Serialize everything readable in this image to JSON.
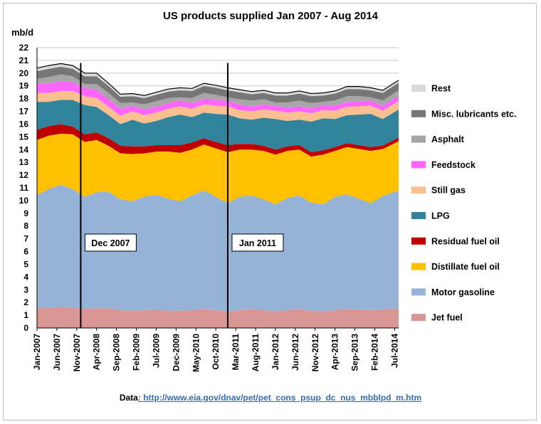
{
  "chart_data": {
    "type": "area",
    "title": "US products supplied Jan 2007 - Aug 2014",
    "ylabel": "mb/d",
    "ylim": [
      0,
      22
    ],
    "yticks": [
      0,
      1,
      2,
      3,
      4,
      5,
      6,
      7,
      8,
      9,
      10,
      11,
      12,
      13,
      14,
      15,
      16,
      17,
      18,
      19,
      20,
      21,
      22
    ],
    "grid": true,
    "stacked": true,
    "legend_position": "right",
    "x_tick_labels": [
      "Jan-2007",
      "Jun-2007",
      "Nov-2007",
      "Apr-2008",
      "Sep-2008",
      "Feb-2009",
      "Jul-2009",
      "Dec-2009",
      "May-2010",
      "Oct-2010",
      "Mar-2011",
      "Aug-2011",
      "Jan-2012",
      "Jun-2012",
      "Nov-2012",
      "Apr-2013",
      "Sep-2013",
      "Feb-2014",
      "Jul-2014"
    ],
    "x": [
      "Jan-2007",
      "Apr-2007",
      "Jul-2007",
      "Oct-2007",
      "Jan-2008",
      "Apr-2008",
      "Jul-2008",
      "Oct-2008",
      "Jan-2009",
      "Apr-2009",
      "Jul-2009",
      "Oct-2009",
      "Jan-2010",
      "Apr-2010",
      "Jul-2010",
      "Oct-2010",
      "Jan-2011",
      "Apr-2011",
      "Jul-2011",
      "Oct-2011",
      "Jan-2012",
      "Apr-2012",
      "Jul-2012",
      "Oct-2012",
      "Jan-2013",
      "Apr-2013",
      "Jul-2013",
      "Oct-2013",
      "Jan-2014",
      "Apr-2014",
      "Aug-2014"
    ],
    "series": [
      {
        "name": "Jet fuel",
        "color": "#d99694",
        "values": [
          1.55,
          1.6,
          1.65,
          1.6,
          1.5,
          1.55,
          1.55,
          1.4,
          1.35,
          1.4,
          1.45,
          1.35,
          1.35,
          1.4,
          1.5,
          1.4,
          1.3,
          1.4,
          1.5,
          1.4,
          1.3,
          1.4,
          1.5,
          1.35,
          1.3,
          1.4,
          1.5,
          1.45,
          1.4,
          1.45,
          1.55
        ]
      },
      {
        "name": "Motor gasoline",
        "color": "#95b3d7",
        "values": [
          8.9,
          9.3,
          9.6,
          9.3,
          8.8,
          9.1,
          9.15,
          8.7,
          8.6,
          8.9,
          9.0,
          8.8,
          8.6,
          9.0,
          9.3,
          8.9,
          8.5,
          8.9,
          8.9,
          8.7,
          8.4,
          8.8,
          8.9,
          8.5,
          8.4,
          8.9,
          9.0,
          8.7,
          8.4,
          8.9,
          9.25
        ]
      },
      {
        "name": "Distillate fuel oil",
        "color": "#ffc000",
        "values": [
          4.3,
          4.2,
          4.0,
          4.3,
          4.3,
          4.1,
          3.6,
          3.6,
          3.7,
          3.4,
          3.4,
          3.7,
          3.8,
          3.6,
          3.6,
          3.8,
          4.0,
          3.7,
          3.6,
          3.8,
          3.9,
          3.7,
          3.6,
          3.6,
          3.9,
          3.6,
          3.7,
          3.9,
          4.1,
          3.7,
          3.85
        ]
      },
      {
        "name": "Residual fuel oil",
        "color": "#c00000",
        "values": [
          0.8,
          0.75,
          0.75,
          0.6,
          0.6,
          0.6,
          0.6,
          0.6,
          0.6,
          0.55,
          0.5,
          0.5,
          0.6,
          0.55,
          0.5,
          0.5,
          0.55,
          0.45,
          0.45,
          0.4,
          0.4,
          0.35,
          0.35,
          0.35,
          0.35,
          0.3,
          0.3,
          0.3,
          0.3,
          0.25,
          0.3
        ]
      },
      {
        "name": "LPG",
        "color": "#31849b",
        "values": [
          2.2,
          1.9,
          1.9,
          2.1,
          2.3,
          2.0,
          1.8,
          1.7,
          2.1,
          1.8,
          1.9,
          2.2,
          2.4,
          2.0,
          2.0,
          2.2,
          2.4,
          2.0,
          1.9,
          2.2,
          2.4,
          2.0,
          2.0,
          2.4,
          2.5,
          2.2,
          2.2,
          2.4,
          2.6,
          2.1,
          2.2
        ]
      },
      {
        "name": "Still gas",
        "color": "#fabf8f",
        "values": [
          0.7,
          0.7,
          0.7,
          0.7,
          0.7,
          0.7,
          0.65,
          0.65,
          0.65,
          0.65,
          0.65,
          0.65,
          0.65,
          0.65,
          0.65,
          0.65,
          0.65,
          0.65,
          0.65,
          0.65,
          0.65,
          0.65,
          0.65,
          0.65,
          0.65,
          0.65,
          0.65,
          0.65,
          0.65,
          0.65,
          0.65
        ]
      },
      {
        "name": "Feedstock",
        "color": "#ff66ff",
        "values": [
          0.75,
          0.75,
          0.75,
          0.7,
          0.65,
          0.65,
          0.6,
          0.55,
          0.45,
          0.45,
          0.45,
          0.45,
          0.45,
          0.45,
          0.45,
          0.45,
          0.45,
          0.45,
          0.4,
          0.4,
          0.4,
          0.4,
          0.4,
          0.4,
          0.4,
          0.4,
          0.4,
          0.4,
          0.4,
          0.4,
          0.4
        ]
      },
      {
        "name": "Asphalt",
        "color": "#a6a6a6",
        "values": [
          0.35,
          0.5,
          0.55,
          0.45,
          0.3,
          0.45,
          0.5,
          0.45,
          0.25,
          0.4,
          0.45,
          0.4,
          0.25,
          0.4,
          0.45,
          0.4,
          0.25,
          0.4,
          0.45,
          0.4,
          0.25,
          0.4,
          0.45,
          0.4,
          0.25,
          0.4,
          0.45,
          0.4,
          0.25,
          0.4,
          0.45
        ]
      },
      {
        "name": "Misc. lubricants etc.",
        "color": "#767676",
        "values": [
          0.6,
          0.65,
          0.6,
          0.6,
          0.6,
          0.6,
          0.55,
          0.5,
          0.5,
          0.5,
          0.5,
          0.5,
          0.55,
          0.55,
          0.55,
          0.55,
          0.55,
          0.55,
          0.5,
          0.5,
          0.55,
          0.55,
          0.55,
          0.55,
          0.5,
          0.55,
          0.55,
          0.55,
          0.55,
          0.6,
          0.6
        ]
      },
      {
        "name": "Rest",
        "color": "#d9d9d9",
        "values": [
          0.25,
          0.25,
          0.25,
          0.25,
          0.25,
          0.25,
          0.2,
          0.2,
          0.2,
          0.2,
          0.2,
          0.2,
          0.2,
          0.2,
          0.2,
          0.2,
          0.2,
          0.2,
          0.2,
          0.2,
          0.2,
          0.2,
          0.2,
          0.2,
          0.2,
          0.2,
          0.2,
          0.2,
          0.2,
          0.2,
          0.2
        ]
      }
    ],
    "annotations": [
      {
        "label": "Dec 2007",
        "x_month_index": 11
      },
      {
        "label": "Jan 2011",
        "x_month_index": 48
      }
    ]
  },
  "source": {
    "prefix": "Data",
    "url_text": ": http://www.eia.gov/dnav/pet/pet_cons_psup_dc_nus_mbblpd_m.htm"
  }
}
